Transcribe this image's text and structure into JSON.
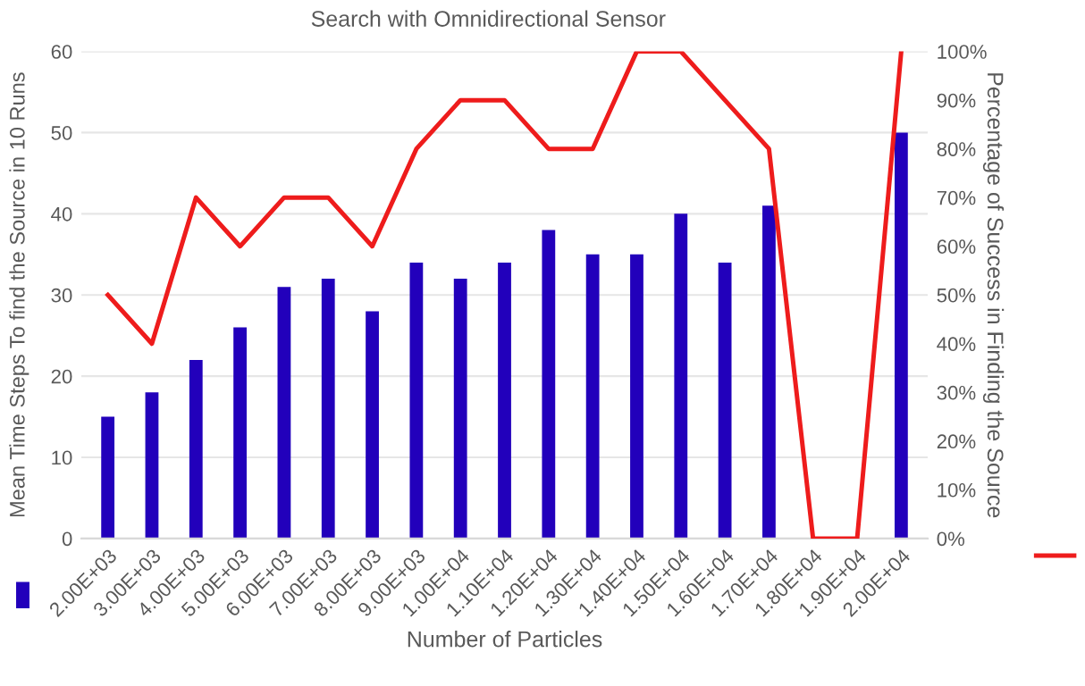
{
  "chart_data": {
    "type": "bar",
    "title": "Search with Omnidirectional Sensor",
    "xlabel": "Number of Particles",
    "ylabel": "Mean Time Steps To find the Source in 10 Runs",
    "y2label": "Percentage of Success in Finding the Source",
    "categories": [
      "2.00E+03",
      "3.00E+03",
      "4.00E+03",
      "5.00E+03",
      "6.00E+03",
      "7.00E+03",
      "8.00E+03",
      "9.00E+03",
      "1.00E+04",
      "1.10E+04",
      "1.20E+04",
      "1.30E+04",
      "1.40E+04",
      "1.50E+04",
      "1.60E+04",
      "1.70E+04",
      "1.80E+04",
      "1.90E+04",
      "2.00E+04"
    ],
    "series": [
      {
        "color": "#2200bb",
        "values": [
          15,
          18,
          22,
          26,
          31,
          32,
          28,
          34,
          32,
          34,
          38,
          35,
          35,
          40,
          34,
          41,
          0,
          0,
          50
        ]
      },
      {
        "type": "line",
        "axis": "y2",
        "color": "#ee1c1c",
        "values": [
          50,
          40,
          70,
          60,
          70,
          70,
          60,
          80,
          90,
          90,
          80,
          80,
          100,
          100,
          90,
          80,
          0,
          0,
          100
        ]
      }
    ],
    "ylim": [
      0,
      60
    ],
    "yticks": [
      0,
      10,
      20,
      30,
      40,
      50,
      60
    ],
    "y2lim": [
      0,
      100
    ],
    "y2ticks": [
      {
        "value": 0,
        "label": "0%"
      },
      {
        "value": 10,
        "label": "10%"
      },
      {
        "value": 20,
        "label": "20%"
      },
      {
        "value": 30,
        "label": "30%"
      },
      {
        "value": 40,
        "label": "40%"
      },
      {
        "value": 50,
        "label": "50%"
      },
      {
        "value": 60,
        "label": "60%"
      },
      {
        "value": 70,
        "label": "70%"
      },
      {
        "value": 80,
        "label": "80%"
      },
      {
        "value": 90,
        "label": "90%"
      },
      {
        "value": 100,
        "label": "100%"
      }
    ],
    "grid": "y"
  }
}
